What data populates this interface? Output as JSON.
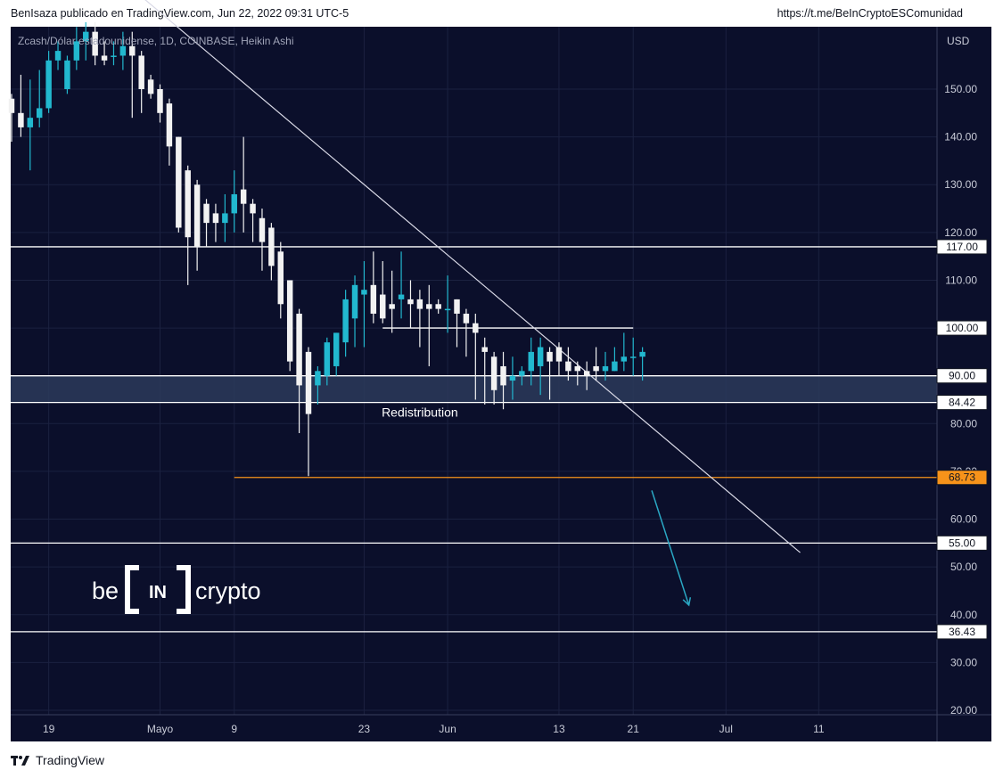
{
  "header": {
    "left": "BenIsaza publicado en TradingView.com, Jun 22, 2022 09:31 UTC-5",
    "right": "https://t.me/BeInCryptoESComunidad"
  },
  "footer": {
    "brand": "TradingView"
  },
  "chart_data": {
    "type": "candlestick",
    "title": "Zcash/Dólar estadounidense, 1D, COINBASE, Heikin Ashi",
    "currency_label": "USD",
    "ylim": [
      20,
      160
    ],
    "y_ticks": [
      20,
      30,
      40,
      50,
      60,
      70,
      80,
      110,
      120,
      130,
      140,
      150
    ],
    "y_tick_labels": [
      "20.00",
      "30.00",
      "40.00",
      "50.00",
      "60.00",
      "70.00",
      "80.00",
      "110.00",
      "120.00",
      "130.00",
      "140.00",
      "150.00"
    ],
    "x_tick_labels": [
      {
        "label": "19",
        "date": "2022-04-19"
      },
      {
        "label": "Mayo",
        "date": "2022-05-01"
      },
      {
        "label": "9",
        "date": "2022-05-09"
      },
      {
        "label": "23",
        "date": "2022-05-23"
      },
      {
        "label": "Jun",
        "date": "2022-06-01"
      },
      {
        "label": "13",
        "date": "2022-06-13"
      },
      {
        "label": "21",
        "date": "2022-06-21"
      },
      {
        "label": "Jul",
        "date": "2022-07-01"
      },
      {
        "label": "11",
        "date": "2022-07-11"
      }
    ],
    "xlim": [
      "2022-04-15",
      "2022-07-20"
    ],
    "colors": {
      "bull": "#22b8cf",
      "bear": "#f2f2f2",
      "background": "#0b0f2b",
      "level": "#ffffff",
      "support": "#f7931a",
      "arrow": "#2aa8c4",
      "zone": "#2c3a5a"
    },
    "candles": [
      {
        "date": "2022-04-15",
        "open": 148,
        "high": 149,
        "low": 139,
        "close": 145
      },
      {
        "date": "2022-04-16",
        "open": 145,
        "high": 153,
        "low": 140,
        "close": 142
      },
      {
        "date": "2022-04-17",
        "open": 142,
        "high": 152,
        "low": 133,
        "close": 144
      },
      {
        "date": "2022-04-18",
        "open": 144,
        "high": 154,
        "low": 142,
        "close": 146
      },
      {
        "date": "2022-04-19",
        "open": 146,
        "high": 158,
        "low": 145,
        "close": 156
      },
      {
        "date": "2022-04-20",
        "open": 156,
        "high": 160,
        "low": 154,
        "close": 158
      },
      {
        "date": "2022-04-21",
        "open": 150,
        "high": 157,
        "low": 149,
        "close": 156
      },
      {
        "date": "2022-04-22",
        "open": 156,
        "high": 163,
        "low": 154,
        "close": 160
      },
      {
        "date": "2022-04-23",
        "open": 160,
        "high": 164,
        "low": 156,
        "close": 162
      },
      {
        "date": "2022-04-24",
        "open": 162,
        "high": 164,
        "low": 155,
        "close": 157
      },
      {
        "date": "2022-04-25",
        "open": 157,
        "high": 160,
        "low": 155,
        "close": 156
      },
      {
        "date": "2022-04-26",
        "open": 157,
        "high": 160,
        "low": 155,
        "close": 157
      },
      {
        "date": "2022-04-27",
        "open": 157,
        "high": 162,
        "low": 154,
        "close": 159
      },
      {
        "date": "2022-04-28",
        "open": 159,
        "high": 162,
        "low": 144,
        "close": 157
      },
      {
        "date": "2022-04-29",
        "open": 157,
        "high": 158,
        "low": 145,
        "close": 150
      },
      {
        "date": "2022-04-30",
        "open": 152,
        "high": 153,
        "low": 148,
        "close": 149
      },
      {
        "date": "2022-05-01",
        "open": 150,
        "high": 151,
        "low": 143,
        "close": 145
      },
      {
        "date": "2022-05-02",
        "open": 147,
        "high": 148,
        "low": 134,
        "close": 138
      },
      {
        "date": "2022-05-03",
        "open": 140,
        "high": 140,
        "low": 120,
        "close": 121
      },
      {
        "date": "2022-05-04",
        "open": 133,
        "high": 134,
        "low": 109,
        "close": 119
      },
      {
        "date": "2022-05-05",
        "open": 130,
        "high": 131,
        "low": 112,
        "close": 117
      },
      {
        "date": "2022-05-06",
        "open": 126,
        "high": 127,
        "low": 117,
        "close": 122
      },
      {
        "date": "2022-05-07",
        "open": 124,
        "high": 126,
        "low": 118,
        "close": 122
      },
      {
        "date": "2022-05-08",
        "open": 122,
        "high": 128,
        "low": 118,
        "close": 124
      },
      {
        "date": "2022-05-09",
        "open": 124,
        "high": 133,
        "low": 120,
        "close": 128
      },
      {
        "date": "2022-05-10",
        "open": 129,
        "high": 140,
        "low": 120,
        "close": 126
      },
      {
        "date": "2022-05-11",
        "open": 126,
        "high": 127,
        "low": 118,
        "close": 124
      },
      {
        "date": "2022-05-12",
        "open": 123,
        "high": 125,
        "low": 112,
        "close": 118
      },
      {
        "date": "2022-05-13",
        "open": 121,
        "high": 122,
        "low": 110,
        "close": 113
      },
      {
        "date": "2022-05-14",
        "open": 116,
        "high": 118,
        "low": 102,
        "close": 105
      },
      {
        "date": "2022-05-15",
        "open": 110,
        "high": 110,
        "low": 91,
        "close": 93
      },
      {
        "date": "2022-05-16",
        "open": 103,
        "high": 104,
        "low": 78,
        "close": 88
      },
      {
        "date": "2022-05-17",
        "open": 95,
        "high": 96,
        "low": 69,
        "close": 82
      },
      {
        "date": "2022-05-18",
        "open": 88,
        "high": 92,
        "low": 84,
        "close": 91
      },
      {
        "date": "2022-05-19",
        "open": 90,
        "high": 98,
        "low": 88,
        "close": 97
      },
      {
        "date": "2022-05-20",
        "open": 92,
        "high": 99,
        "low": 90,
        "close": 99
      },
      {
        "date": "2022-05-21",
        "open": 97,
        "high": 108,
        "low": 94,
        "close": 106
      },
      {
        "date": "2022-05-22",
        "open": 102,
        "high": 111,
        "low": 96,
        "close": 109
      },
      {
        "date": "2022-05-23",
        "open": 107,
        "high": 114,
        "low": 96,
        "close": 108
      },
      {
        "date": "2022-05-24",
        "open": 109,
        "high": 116,
        "low": 101,
        "close": 103
      },
      {
        "date": "2022-05-25",
        "open": 107,
        "high": 114,
        "low": 101,
        "close": 102
      },
      {
        "date": "2022-05-26",
        "open": 105,
        "high": 112,
        "low": 99,
        "close": 104
      },
      {
        "date": "2022-05-27",
        "open": 106,
        "high": 116,
        "low": 102,
        "close": 107
      },
      {
        "date": "2022-05-28",
        "open": 106,
        "high": 110,
        "low": 100,
        "close": 105
      },
      {
        "date": "2022-05-29",
        "open": 106,
        "high": 108,
        "low": 96,
        "close": 104
      },
      {
        "date": "2022-05-30",
        "open": 105,
        "high": 109,
        "low": 92,
        "close": 104
      },
      {
        "date": "2022-05-31",
        "open": 105,
        "high": 106,
        "low": 103,
        "close": 104
      },
      {
        "date": "2022-06-01",
        "open": 104,
        "high": 111,
        "low": 99,
        "close": 104
      },
      {
        "date": "2022-06-02",
        "open": 106,
        "high": 106,
        "low": 96,
        "close": 103
      },
      {
        "date": "2022-06-03",
        "open": 103,
        "high": 104,
        "low": 94,
        "close": 101
      },
      {
        "date": "2022-06-04",
        "open": 101,
        "high": 103,
        "low": 85,
        "close": 99
      },
      {
        "date": "2022-06-05",
        "open": 96,
        "high": 98,
        "low": 84,
        "close": 95
      },
      {
        "date": "2022-06-06",
        "open": 94,
        "high": 95,
        "low": 84,
        "close": 87
      },
      {
        "date": "2022-06-07",
        "open": 92,
        "high": 95,
        "low": 83,
        "close": 88
      },
      {
        "date": "2022-06-08",
        "open": 89,
        "high": 94,
        "low": 85,
        "close": 90
      },
      {
        "date": "2022-06-09",
        "open": 90,
        "high": 92,
        "low": 88,
        "close": 91
      },
      {
        "date": "2022-06-10",
        "open": 91,
        "high": 98,
        "low": 88,
        "close": 95
      },
      {
        "date": "2022-06-11",
        "open": 92,
        "high": 98,
        "low": 86,
        "close": 96
      },
      {
        "date": "2022-06-12",
        "open": 95,
        "high": 96,
        "low": 85,
        "close": 93
      },
      {
        "date": "2022-06-13",
        "open": 96,
        "high": 97,
        "low": 90,
        "close": 93
      },
      {
        "date": "2022-06-14",
        "open": 93,
        "high": 96,
        "low": 89,
        "close": 91
      },
      {
        "date": "2022-06-15",
        "open": 92,
        "high": 93,
        "low": 88,
        "close": 91
      },
      {
        "date": "2022-06-16",
        "open": 91,
        "high": 93,
        "low": 87,
        "close": 90
      },
      {
        "date": "2022-06-17",
        "open": 92,
        "high": 96,
        "low": 89,
        "close": 91
      },
      {
        "date": "2022-06-18",
        "open": 91,
        "high": 95,
        "low": 89,
        "close": 92
      },
      {
        "date": "2022-06-19",
        "open": 91,
        "high": 96,
        "low": 91,
        "close": 93
      },
      {
        "date": "2022-06-20",
        "open": 93,
        "high": 99,
        "low": 91,
        "close": 94
      },
      {
        "date": "2022-06-21",
        "open": 94,
        "high": 98,
        "low": 90,
        "close": 94
      },
      {
        "date": "2022-06-22",
        "open": 94,
        "high": 96,
        "low": 89,
        "close": 95
      }
    ],
    "horizontal_levels": [
      {
        "value": 117,
        "label": "117.00",
        "color": "#ffffff"
      },
      {
        "value": 100,
        "label": "100.00",
        "color": "#ffffff"
      },
      {
        "value": 90,
        "label": "90.00",
        "color": "#ffffff"
      },
      {
        "value": 84.42,
        "label": "84.42",
        "color": "#ffffff"
      },
      {
        "value": 68.73,
        "label": "68.73",
        "color": "#f7931a"
      },
      {
        "value": 55,
        "label": "55.00",
        "color": "#ffffff"
      },
      {
        "value": 36.43,
        "label": "36.43",
        "color": "#ffffff"
      }
    ],
    "zone": {
      "from": 84.42,
      "to": 90
    },
    "annotations": [
      {
        "text": "Redistribution",
        "date": "2022-05-29",
        "value": 81.5
      }
    ],
    "trendline": {
      "from": {
        "date": "2022-04-28",
        "value": 171
      },
      "to": {
        "date": "2022-07-09",
        "value": 53
      }
    },
    "projection_arrow": {
      "from": {
        "date": "2022-06-23",
        "value": 66
      },
      "to": {
        "date": "2022-06-27",
        "value": 42
      }
    },
    "watermark": {
      "left": "be",
      "mark": "IN",
      "right": "crypto"
    }
  }
}
